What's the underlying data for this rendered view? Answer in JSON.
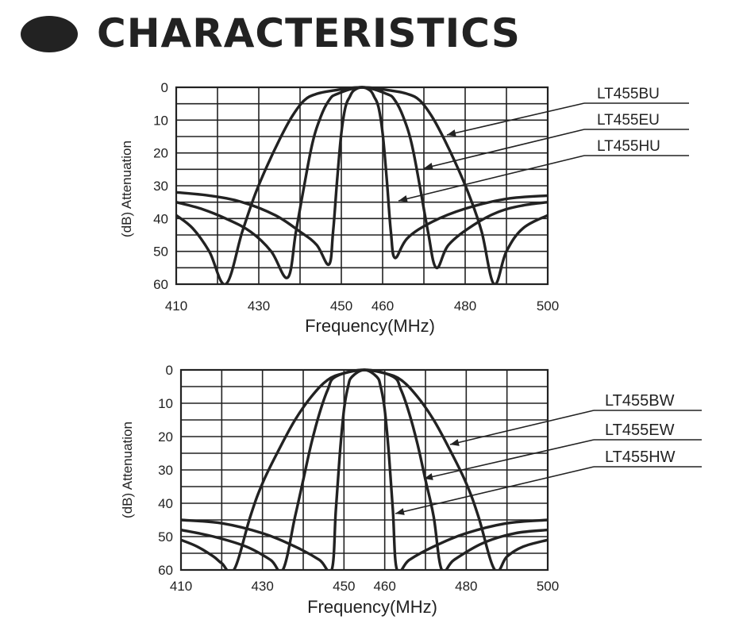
{
  "header": {
    "title": "CHARACTERISTICS"
  },
  "colors": {
    "ink": "#222222",
    "grid": "#222222",
    "background": "#ffffff"
  },
  "chart_data": [
    {
      "type": "line",
      "title": "",
      "xlabel": "Frequency(MHz)",
      "ylabel": "(dB) Attenuation",
      "xlim": [
        410,
        500
      ],
      "ylim": [
        0,
        60
      ],
      "y_inverted": true,
      "xticks": [
        410,
        430,
        450,
        460,
        480,
        500
      ],
      "yticks": [
        0,
        10,
        20,
        30,
        40,
        50,
        60
      ],
      "grid": true,
      "series": [
        {
          "name": "LT455BU",
          "points": [
            [
              410,
              39
            ],
            [
              414,
              43
            ],
            [
              418,
              50
            ],
            [
              422,
              60
            ],
            [
              426,
              44
            ],
            [
              429,
              33
            ],
            [
              432,
              24
            ],
            [
              435,
              16
            ],
            [
              438,
              9
            ],
            [
              441,
              4
            ],
            [
              444,
              2
            ],
            [
              448,
              1
            ],
            [
              455,
              0
            ],
            [
              462,
              1
            ],
            [
              466,
              2
            ],
            [
              469,
              4
            ],
            [
              472,
              9
            ],
            [
              475,
              16
            ],
            [
              478,
              24
            ],
            [
              481,
              33
            ],
            [
              484,
              44
            ],
            [
              487,
              60
            ],
            [
              490,
              50
            ],
            [
              494,
              43
            ],
            [
              500,
              39
            ]
          ]
        },
        {
          "name": "LT455EU",
          "points": [
            [
              410,
              35
            ],
            [
              416,
              37
            ],
            [
              422,
              40
            ],
            [
              428,
              44
            ],
            [
              433,
              50
            ],
            [
              437,
              58
            ],
            [
              439,
              44
            ],
            [
              441,
              30
            ],
            [
              443,
              17
            ],
            [
              445,
              9
            ],
            [
              447,
              4
            ],
            [
              449,
              2
            ],
            [
              455,
              0
            ],
            [
              461,
              2
            ],
            [
              463,
              4
            ],
            [
              465,
              9
            ],
            [
              467,
              17
            ],
            [
              469,
              30
            ],
            [
              471,
              44
            ],
            [
              473,
              55
            ],
            [
              476,
              48
            ],
            [
              482,
              42
            ],
            [
              488,
              38
            ],
            [
              494,
              36
            ],
            [
              500,
              35
            ]
          ]
        },
        {
          "name": "LT455HU",
          "points": [
            [
              410,
              32
            ],
            [
              418,
              33
            ],
            [
              426,
              35
            ],
            [
              434,
              39
            ],
            [
              440,
              44
            ],
            [
              444,
              48
            ],
            [
              447,
              54
            ],
            [
              448,
              44
            ],
            [
              449,
              28
            ],
            [
              450,
              14
            ],
            [
              451,
              6
            ],
            [
              452,
              3
            ],
            [
              453,
              1
            ],
            [
              455,
              0
            ],
            [
              457,
              1
            ],
            [
              458,
              3
            ],
            [
              459,
              6
            ],
            [
              460,
              14
            ],
            [
              461,
              28
            ],
            [
              462,
              44
            ],
            [
              463,
              52
            ],
            [
              466,
              46
            ],
            [
              472,
              41
            ],
            [
              480,
              37
            ],
            [
              490,
              34
            ],
            [
              500,
              33
            ]
          ]
        }
      ],
      "legend": [
        "LT455BU",
        "LT455EU",
        "LT455HU"
      ]
    },
    {
      "type": "line",
      "title": "",
      "xlabel": "Frequency(MHz)",
      "ylabel": "(dB) Attenuation",
      "xlim": [
        410,
        500
      ],
      "ylim": [
        0,
        60
      ],
      "y_inverted": true,
      "xticks": [
        410,
        430,
        450,
        460,
        480,
        500
      ],
      "yticks": [
        0,
        10,
        20,
        30,
        40,
        50,
        60
      ],
      "grid": true,
      "series": [
        {
          "name": "LT455BW",
          "points": [
            [
              410,
              51
            ],
            [
              414,
              53
            ],
            [
              418,
              56
            ],
            [
              420,
              58
            ],
            [
              423,
              60
            ],
            [
              427,
              44
            ],
            [
              430,
              34
            ],
            [
              434,
              24
            ],
            [
              438,
              15
            ],
            [
              442,
              8
            ],
            [
              446,
              3
            ],
            [
              450,
              1
            ],
            [
              455,
              0
            ],
            [
              460,
              1
            ],
            [
              464,
              3
            ],
            [
              468,
              8
            ],
            [
              472,
              15
            ],
            [
              476,
              24
            ],
            [
              480,
              34
            ],
            [
              483,
              44
            ],
            [
              487,
              60
            ],
            [
              490,
              56
            ],
            [
              494,
              53
            ],
            [
              500,
              51
            ]
          ]
        },
        {
          "name": "LT455EW",
          "points": [
            [
              410,
              48
            ],
            [
              418,
              50
            ],
            [
              426,
              53
            ],
            [
              432,
              57
            ],
            [
              435,
              60
            ],
            [
              438,
              44
            ],
            [
              440,
              33
            ],
            [
              442,
              22
            ],
            [
              444,
              13
            ],
            [
              446,
              6
            ],
            [
              448,
              2
            ],
            [
              455,
              0
            ],
            [
              462,
              2
            ],
            [
              464,
              6
            ],
            [
              466,
              13
            ],
            [
              468,
              22
            ],
            [
              470,
              33
            ],
            [
              472,
              44
            ],
            [
              474,
              60
            ],
            [
              477,
              57
            ],
            [
              484,
              52
            ],
            [
              492,
              49
            ],
            [
              500,
              48
            ]
          ]
        },
        {
          "name": "LT455HW",
          "points": [
            [
              410,
              45
            ],
            [
              420,
              46
            ],
            [
              430,
              49
            ],
            [
              438,
              53
            ],
            [
              444,
              57
            ],
            [
              447,
              60
            ],
            [
              448,
              42
            ],
            [
              449,
              25
            ],
            [
              450,
              12
            ],
            [
              451,
              5
            ],
            [
              452,
              2
            ],
            [
              455,
              0
            ],
            [
              458,
              2
            ],
            [
              459,
              5
            ],
            [
              460,
              12
            ],
            [
              461,
              25
            ],
            [
              462,
              42
            ],
            [
              463,
              60
            ],
            [
              466,
              57
            ],
            [
              472,
              53
            ],
            [
              480,
              49
            ],
            [
              490,
              46
            ],
            [
              500,
              45
            ]
          ]
        }
      ],
      "legend": [
        "LT455BW",
        "LT455EW",
        "LT455HW"
      ]
    }
  ]
}
